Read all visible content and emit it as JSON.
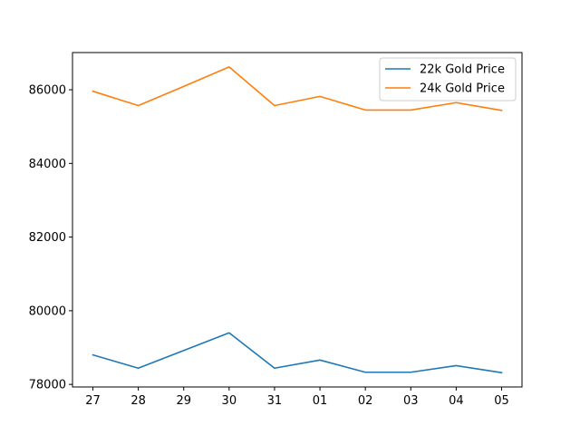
{
  "chart_data": {
    "type": "line",
    "categories": [
      "27",
      "28",
      "29",
      "30",
      "31",
      "01",
      "02",
      "03",
      "04",
      "05"
    ],
    "series": [
      {
        "name": "22k Gold Price",
        "color": "#1f77b4",
        "values": [
          78800,
          78440,
          78920,
          79400,
          78440,
          78660,
          78330,
          78330,
          78510,
          78320
        ]
      },
      {
        "name": "24k Gold Price",
        "color": "#ff7f0e",
        "values": [
          85960,
          85570,
          86090,
          86620,
          85570,
          85820,
          85450,
          85450,
          85650,
          85440
        ]
      }
    ],
    "yticks": [
      78000,
      80000,
      82000,
      84000,
      86000
    ],
    "ylim": [
      77930,
      87010
    ],
    "grid": false,
    "legend": "top-right",
    "title": "",
    "xlabel": "",
    "ylabel": ""
  }
}
